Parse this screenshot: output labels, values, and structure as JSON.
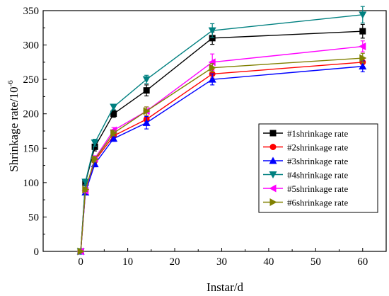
{
  "chart_data": {
    "type": "line",
    "xlabel": "Instar/d",
    "ylabel": "Shrinkage rate/10",
    "ylabel_superscript": "-6",
    "xlim": [
      -8,
      65
    ],
    "ylim": [
      0,
      350
    ],
    "x_ticks": [
      0,
      10,
      20,
      30,
      40,
      50,
      60
    ],
    "y_ticks": [
      0,
      50,
      100,
      150,
      200,
      250,
      300,
      350
    ],
    "x_tick_labels": [
      "0",
      "10",
      "20",
      "30",
      "40",
      "50",
      "60"
    ],
    "y_tick_labels": [
      "0",
      "50",
      "100",
      "150",
      "200",
      "250",
      "300",
      "350"
    ],
    "grid": false,
    "legend_position": "bottom-right",
    "x": [
      0,
      1,
      3,
      7,
      14,
      28,
      60
    ],
    "series": [
      {
        "name": "#1shrinkage rate",
        "color": "#000000",
        "marker": "square",
        "values": [
          0,
          100,
          152,
          200,
          234,
          310,
          320
        ],
        "errors": [
          0,
          4,
          6,
          5,
          8,
          9,
          10
        ]
      },
      {
        "name": "#2shrinkage rate",
        "color": "#ff0000",
        "marker": "circle",
        "values": [
          0,
          88,
          132,
          168,
          192,
          258,
          275
        ],
        "errors": [
          0,
          3,
          4,
          4,
          6,
          6,
          6
        ]
      },
      {
        "name": "#3shrinkage rate",
        "color": "#0000ff",
        "marker": "triangle-up",
        "values": [
          0,
          86,
          127,
          164,
          187,
          250,
          269
        ],
        "errors": [
          0,
          3,
          4,
          4,
          9,
          8,
          8
        ]
      },
      {
        "name": "#4shrinkage rate",
        "color": "#008080",
        "marker": "triangle-down",
        "values": [
          0,
          101,
          158,
          210,
          250,
          321,
          344
        ],
        "errors": [
          0,
          4,
          5,
          4,
          6,
          10,
          12
        ]
      },
      {
        "name": "#5shrinkage rate",
        "color": "#ff00ff",
        "marker": "triangle-left",
        "values": [
          0,
          88,
          135,
          176,
          204,
          275,
          298
        ],
        "errors": [
          0,
          3,
          4,
          4,
          6,
          12,
          8
        ]
      },
      {
        "name": "#6shrinkage rate",
        "color": "#808000",
        "marker": "triangle-right",
        "values": [
          0,
          90,
          134,
          172,
          204,
          267,
          281
        ],
        "errors": [
          0,
          3,
          4,
          4,
          6,
          6,
          7
        ]
      }
    ]
  }
}
